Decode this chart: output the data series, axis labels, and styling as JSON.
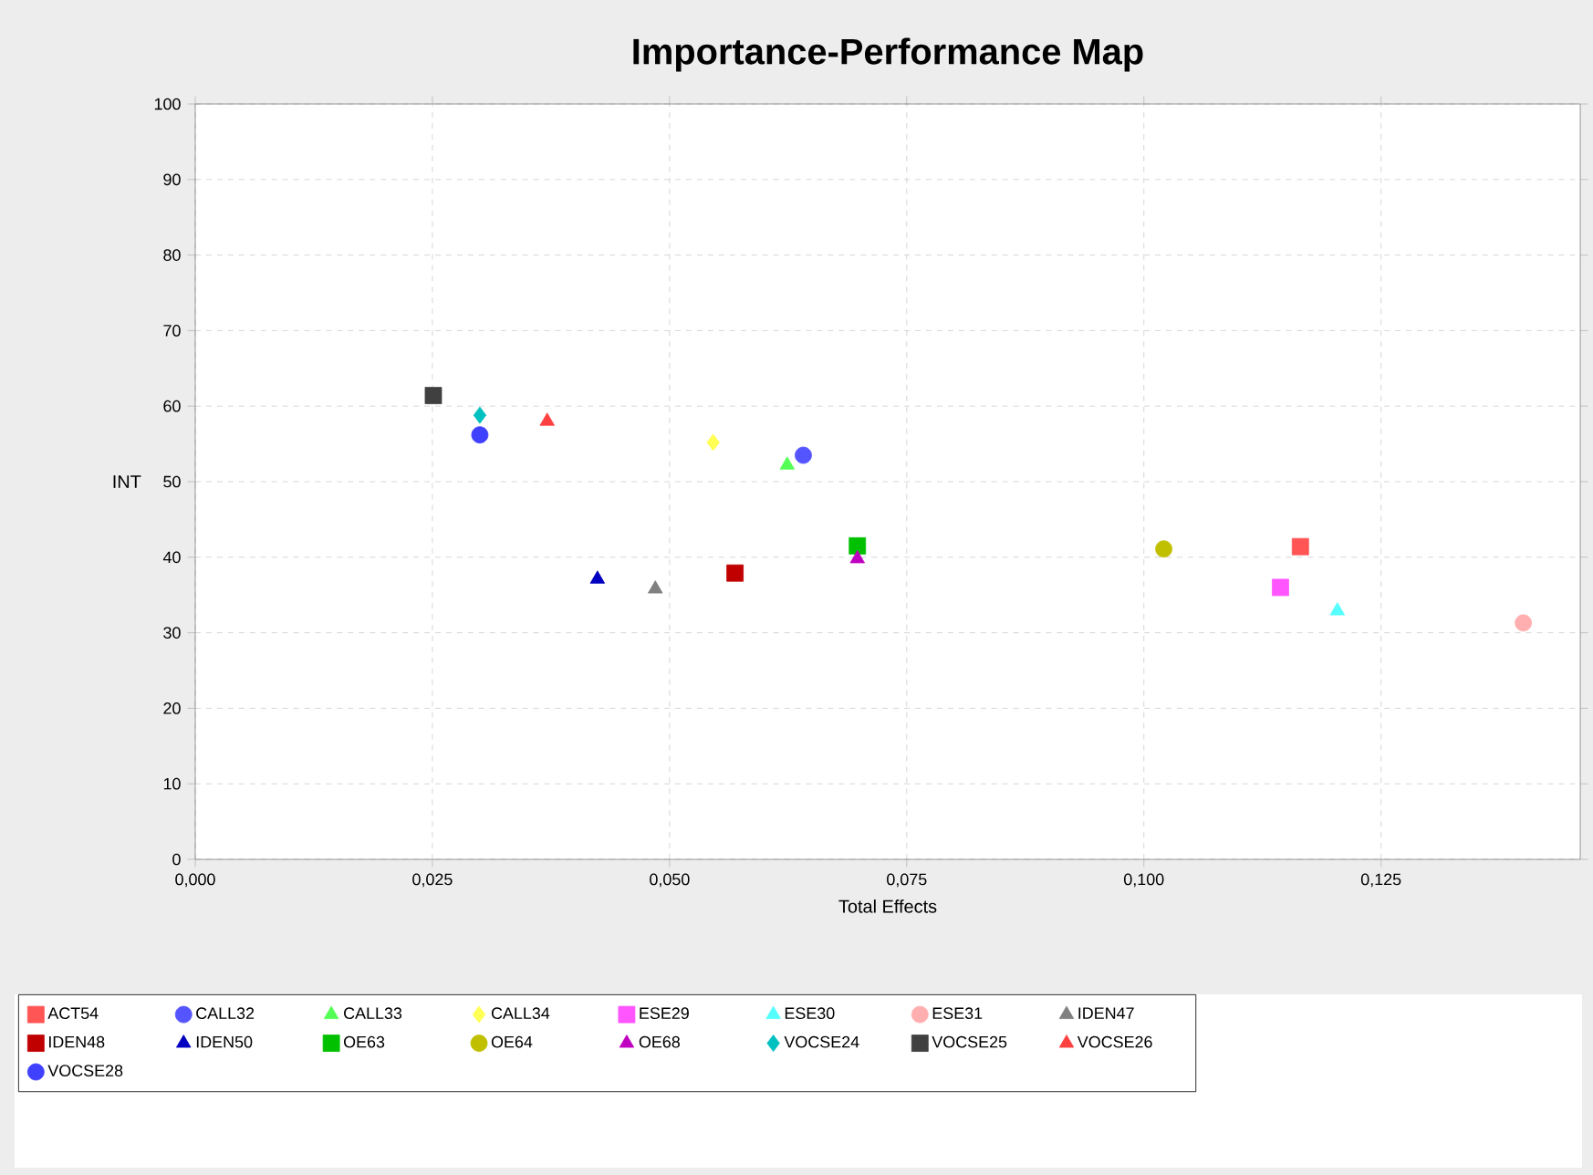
{
  "chart_data": {
    "type": "scatter",
    "title": "Importance-Performance Map",
    "xlabel": "Total Effects",
    "ylabel": "INT",
    "xlim": [
      0,
      0.146
    ],
    "ylim": [
      0,
      100
    ],
    "xticks": [
      {
        "value": 0,
        "label": "0,000"
      },
      {
        "value": 0.025,
        "label": "0,025"
      },
      {
        "value": 0.05,
        "label": "0,050"
      },
      {
        "value": 0.075,
        "label": "0,075"
      },
      {
        "value": 0.1,
        "label": "0,100"
      },
      {
        "value": 0.125,
        "label": "0,125"
      }
    ],
    "yticks": [
      0,
      10,
      20,
      30,
      40,
      50,
      60,
      70,
      80,
      90,
      100
    ],
    "grid": true,
    "legend": "bottom",
    "series": [
      {
        "name": "ACT54",
        "color": "#ff5555",
        "marker": "square",
        "x": [
          0.1165
        ],
        "values": [
          41.4
        ]
      },
      {
        "name": "CALL32",
        "color": "#5555ff",
        "marker": "circle",
        "x": [
          0.0641
        ],
        "values": [
          53.5
        ]
      },
      {
        "name": "CALL33",
        "color": "#55ff55",
        "marker": "triangle",
        "x": [
          0.0624
        ],
        "values": [
          52.2
        ]
      },
      {
        "name": "CALL34",
        "color": "#ffff55",
        "marker": "diamond",
        "x": [
          0.0546
        ],
        "values": [
          55.2
        ]
      },
      {
        "name": "ESE29",
        "color": "#ff55ff",
        "marker": "square",
        "x": [
          0.1144
        ],
        "values": [
          36
        ]
      },
      {
        "name": "ESE30",
        "color": "#55ffff",
        "marker": "triangle",
        "x": [
          0.1204
        ],
        "values": [
          32.9
        ]
      },
      {
        "name": "ESE31",
        "color": "#ffafaf",
        "marker": "circle",
        "x": [
          0.14
        ],
        "values": [
          31.3
        ]
      },
      {
        "name": "IDEN47",
        "color": "#808080",
        "marker": "triangle",
        "x": [
          0.0485
        ],
        "values": [
          35.8
        ]
      },
      {
        "name": "IDEN48",
        "color": "#c00000",
        "marker": "square",
        "x": [
          0.0569
        ],
        "values": [
          37.9
        ]
      },
      {
        "name": "IDEN50",
        "color": "#0000c0",
        "marker": "triangle",
        "x": [
          0.0424
        ],
        "values": [
          37.1
        ]
      },
      {
        "name": "OE63",
        "color": "#00c000",
        "marker": "square",
        "x": [
          0.0698
        ],
        "values": [
          41.5
        ]
      },
      {
        "name": "OE64",
        "color": "#c0c000",
        "marker": "circle",
        "x": [
          0.1021
        ],
        "values": [
          41.1
        ]
      },
      {
        "name": "OE68",
        "color": "#c000c0",
        "marker": "triangle",
        "x": [
          0.0698
        ],
        "values": [
          39.8
        ]
      },
      {
        "name": "VOCSE24",
        "color": "#00c0c0",
        "marker": "diamond",
        "x": [
          0.03
        ],
        "values": [
          58.8
        ]
      },
      {
        "name": "VOCSE25",
        "color": "#404040",
        "marker": "square",
        "x": [
          0.0251
        ],
        "values": [
          61.4
        ]
      },
      {
        "name": "VOCSE26",
        "color": "#ff4040",
        "marker": "triangle",
        "x": [
          0.0371
        ],
        "values": [
          58
        ]
      },
      {
        "name": "VOCSE28",
        "color": "#4040ff",
        "marker": "circle",
        "x": [
          0.03
        ],
        "values": [
          56.2
        ]
      }
    ]
  }
}
